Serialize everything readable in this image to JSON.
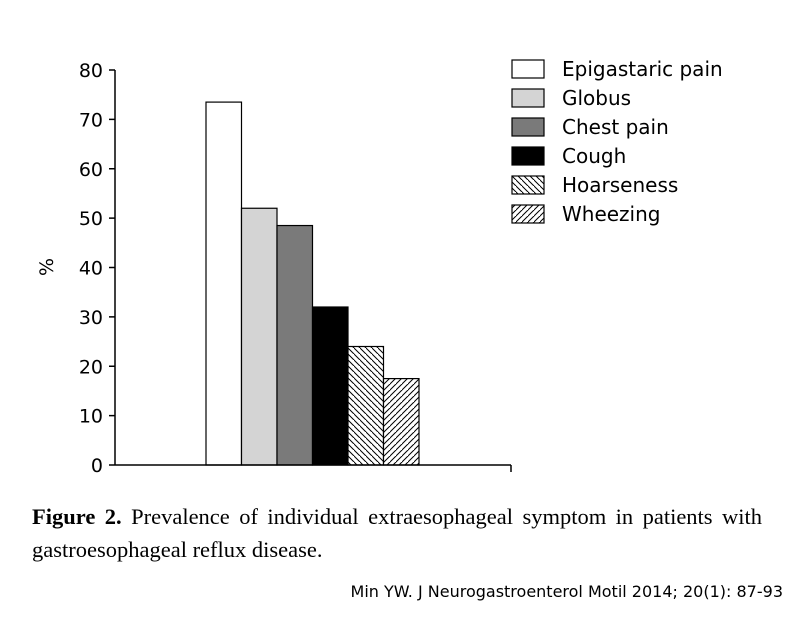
{
  "chart_data": {
    "type": "bar",
    "categories": [
      "Epigastaric pain",
      "Globus",
      "Chest pain",
      "Cough",
      "Hoarseness",
      "Wheezing"
    ],
    "values": [
      73.5,
      52,
      48.5,
      32,
      24,
      17.5
    ],
    "ylabel": "%",
    "ylim": [
      0,
      80
    ],
    "yticks": [
      0,
      10,
      20,
      30,
      40,
      50,
      60,
      70,
      80
    ],
    "legend_position": "top-right",
    "series_styles": [
      {
        "fill": "#ffffff",
        "pattern": "none"
      },
      {
        "fill": "#d4d4d4",
        "pattern": "none"
      },
      {
        "fill": "#7a7a7a",
        "pattern": "none"
      },
      {
        "fill": "#000000",
        "pattern": "none"
      },
      {
        "fill": "#ffffff",
        "pattern": "back-diagonal-hatch"
      },
      {
        "fill": "#ffffff",
        "pattern": "forward-diagonal-hatch"
      }
    ]
  },
  "caption": {
    "label": "Figure 2.",
    "text": "Prevalence of individual extraesophageal symptom in patients with gastroesophageal reflux disease."
  },
  "source": "Min YW. J Neurogastroenterol Motil 2014; 20(1): 87-93"
}
